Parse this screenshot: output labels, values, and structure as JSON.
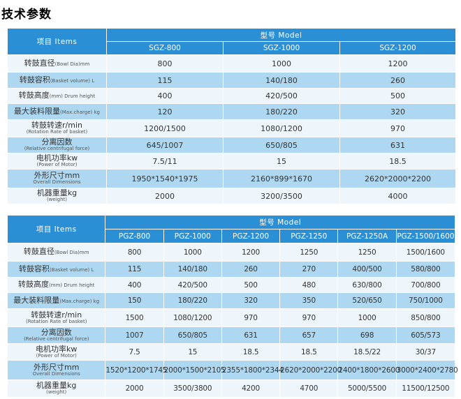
{
  "title": "技术参数",
  "table1": {
    "item_header": "项目 Items",
    "model_header": "型号 Model",
    "models": [
      "SGZ-800",
      "SGZ-1000",
      "SGZ-1200"
    ],
    "rows": [
      {
        "zh": "转鼓直径",
        "en": "(Bowl Dia)mm",
        "values": [
          "800",
          "1000",
          "1200"
        ]
      },
      {
        "zh": "转鼓容积",
        "en": "(Basket volume) L",
        "values": [
          "115",
          "140/180",
          "260"
        ]
      },
      {
        "zh": "转鼓高度",
        "en": "(mm) Drum height",
        "values": [
          "400",
          "420/500",
          "500"
        ]
      },
      {
        "zh": "最大装料限量",
        "en": "(Max.charge) kg",
        "values": [
          "120",
          "180/220",
          "320"
        ]
      },
      {
        "zh": "转鼓转速",
        "unit": "r/min",
        "en2": "(Rotation Rate of basket)",
        "values": [
          "1200/1500",
          "1080/1200",
          "970"
        ]
      },
      {
        "zh": "分离因数",
        "en2": "(Relative centrifugal force)",
        "values": [
          "645/1007",
          "650/805",
          "631"
        ]
      },
      {
        "zh": "电机功率",
        "unit": "kw",
        "en2": "(Power of Motor)",
        "values": [
          "7.5/11",
          "15",
          "18.5"
        ]
      },
      {
        "zh": "外形尺寸",
        "unit": "mm",
        "en2": "Overall Dimensions",
        "values": [
          "1950*1540*1975",
          "2160*899*1670",
          "2620*2000*2200"
        ]
      },
      {
        "zh": "机器重量",
        "unit": "kg",
        "en2": "(weight)",
        "values": [
          "2000",
          "3200/3500",
          "4000"
        ]
      }
    ]
  },
  "table2": {
    "item_header": "项目 Items",
    "model_header": "型号 Model",
    "models": [
      "PGZ-800",
      "PGZ-1000",
      "PGZ-1200",
      "PGZ-1250",
      "PGZ-1250A",
      "PGZ-1500/1600"
    ],
    "rows": [
      {
        "zh": "转鼓直径",
        "en": "(Bowl Dia)mm",
        "values": [
          "800",
          "1000",
          "1200",
          "1250",
          "1250",
          "1500/1600"
        ]
      },
      {
        "zh": "转鼓容积",
        "en": "(Basket volume) L",
        "values": [
          "115",
          "140/180",
          "260",
          "270",
          "400/500",
          "580/800"
        ]
      },
      {
        "zh": "转鼓高度",
        "en": "(mm) Drum height",
        "values": [
          "400",
          "420/500",
          "500",
          "480",
          "630/800",
          "700/800"
        ]
      },
      {
        "zh": "最大装料限量",
        "en": "(Max.charge) kg",
        "values": [
          "150",
          "180/220",
          "320",
          "350",
          "520/650",
          "750/1000"
        ]
      },
      {
        "zh": "转鼓转速",
        "unit": "r/min",
        "en2": "(Rotation Rate of basket)",
        "values": [
          "1500",
          "1080/1200",
          "970",
          "970",
          "1000",
          "850/800"
        ]
      },
      {
        "zh": "分离因数",
        "en2": "(Relative centrifugal force)",
        "values": [
          "1007",
          "650/805",
          "631",
          "657",
          "698",
          "605/573"
        ]
      },
      {
        "zh": "电机功率",
        "unit": "kw",
        "en2": "(Power of Motor)",
        "values": [
          "7.5",
          "15",
          "18.5",
          "18.5",
          "18.5/22",
          "30/37"
        ]
      },
      {
        "zh": "外形尺寸",
        "unit": "mm",
        "en2": "Overall Dimensions",
        "values": [
          "1520*1200*1745",
          "2000*1500*2105",
          "2355*1800*2344",
          "2620*2000*2200",
          "2400*1800*2600",
          "3000*2400*2780"
        ]
      },
      {
        "zh": "机器重量",
        "unit": "kg",
        "en2": "(weight)",
        "values": [
          "2000",
          "3500/3800",
          "4200",
          "4700",
          "5000/5500",
          "11500/12500"
        ]
      }
    ]
  }
}
